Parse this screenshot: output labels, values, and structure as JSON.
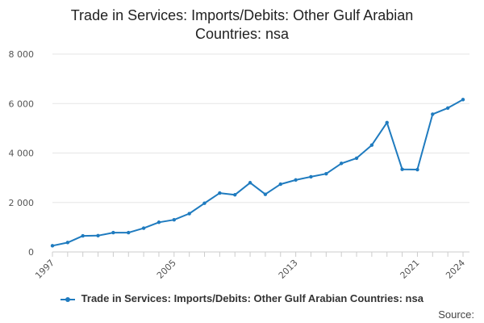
{
  "chart_data": {
    "type": "line",
    "title_line1": "Trade in Services: Imports/Debits: Other Gulf Arabian",
    "title_line2": "Countries: nsa",
    "x": [
      1997,
      1998,
      1999,
      2000,
      2001,
      2002,
      2003,
      2004,
      2005,
      2006,
      2007,
      2008,
      2009,
      2010,
      2011,
      2012,
      2013,
      2014,
      2015,
      2016,
      2017,
      2018,
      2019,
      2020,
      2021,
      2022,
      2023,
      2024
    ],
    "series": [
      {
        "name": "Trade in Services: Imports/Debits: Other Gulf Arabian Countries: nsa",
        "color": "#1f7bbf",
        "values": [
          250,
          380,
          650,
          660,
          780,
          780,
          960,
          1200,
          1300,
          1550,
          1970,
          2380,
          2310,
          2800,
          2330,
          2740,
          2910,
          3040,
          3160,
          3580,
          3790,
          4320,
          5230,
          3340,
          3330,
          5570,
          5820,
          6160
        ]
      }
    ],
    "x_tick_labels": [
      "1997",
      "2005",
      "2013",
      "2021",
      "2024"
    ],
    "y_tick_labels": [
      "0",
      "2 000",
      "4 000",
      "6 000",
      "8 000"
    ],
    "y_ticks": [
      0,
      2000,
      4000,
      6000,
      8000
    ],
    "ylim": [
      0,
      8000
    ],
    "xlim": [
      1997,
      2024
    ],
    "grid": true,
    "legend_position": "bottom",
    "source_label": "Source:"
  }
}
